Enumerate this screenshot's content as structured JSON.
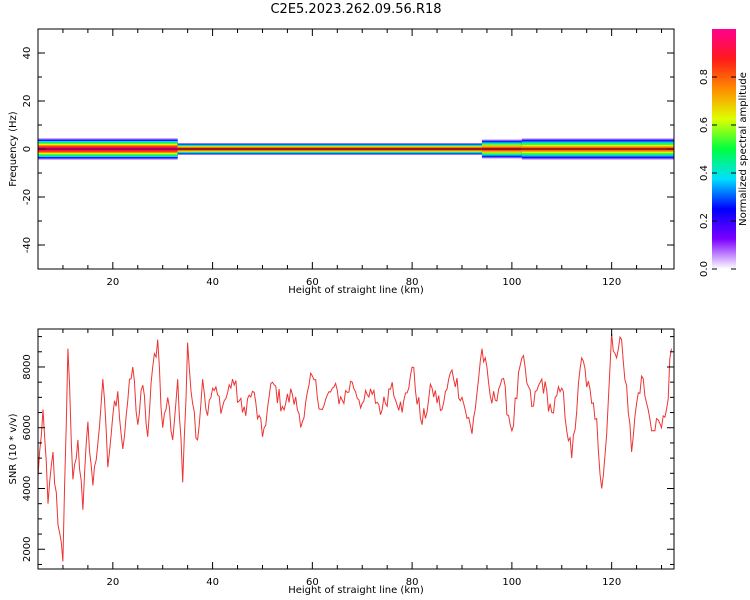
{
  "title": "C2E5.2023.262.09.56.R18",
  "chart_data": [
    {
      "type": "heatmap",
      "xlabel": "Height of straight line (km)",
      "ylabel": "Frequency (Hz)",
      "xlim": [
        5,
        132.5
      ],
      "ylim": [
        -50,
        50
      ],
      "xticks": [
        20,
        40,
        60,
        80,
        100,
        120
      ],
      "yticks": [
        -40,
        -20,
        0,
        20,
        40
      ],
      "colorbar": {
        "label": "Normalized spectral amplitude",
        "range": [
          0,
          1
        ],
        "ticks": [
          "0.0",
          "0.2",
          "0.4",
          "0.6",
          "0.8"
        ],
        "colormap": "gist_ncar",
        "stops": [
          "#ffffff",
          "#7b00ff",
          "#0000ff",
          "#00e0ff",
          "#00ff40",
          "#dfff00",
          "#ff8c00",
          "#ff1a1a",
          "#ff0090"
        ]
      },
      "band": {
        "center_hz": 0,
        "segments": [
          {
            "x": [
              5,
              33
            ],
            "half_width_hz": 4.5,
            "peak": 1.0
          },
          {
            "x": [
              33,
              94
            ],
            "half_width_hz": 2.5,
            "peak": 0.95
          },
          {
            "x": [
              94,
              102
            ],
            "half_width_hz": 4.0,
            "peak": 0.9
          },
          {
            "x": [
              102,
              132.5
            ],
            "half_width_hz": 4.5,
            "peak": 0.85
          }
        ]
      }
    },
    {
      "type": "line",
      "xlabel": "Height of straight line (km)",
      "ylabel": "SNR (10 * v/v)",
      "xlim": [
        5,
        132.5
      ],
      "ylim": [
        1350,
        9250
      ],
      "xticks": [
        20,
        40,
        60,
        80,
        100,
        120
      ],
      "yticks": [
        2000,
        4000,
        6000,
        8000
      ],
      "series": [
        {
          "color": "#ee3333",
          "x": [
            5,
            6,
            7,
            8,
            9,
            10,
            11,
            12,
            13,
            14,
            15,
            16,
            17,
            18,
            19,
            20,
            21,
            22,
            23,
            24,
            25,
            26,
            27,
            28,
            29,
            30,
            31,
            32,
            33,
            34,
            35,
            36,
            37,
            38,
            39,
            40,
            42,
            44,
            46,
            48,
            50,
            52,
            54,
            56,
            58,
            60,
            62,
            64,
            66,
            68,
            70,
            72,
            74,
            76,
            78,
            80,
            82,
            84,
            86,
            88,
            90,
            92,
            94,
            96,
            98,
            100,
            102,
            104,
            106,
            108,
            110,
            112,
            114,
            116,
            117,
            118,
            119,
            120,
            121,
            122,
            123,
            124,
            125,
            126,
            127,
            128,
            129,
            130,
            131,
            132
          ],
          "y": [
            4400,
            6600,
            3500,
            5200,
            2800,
            1600,
            8600,
            4300,
            5600,
            3300,
            6200,
            4100,
            5500,
            7600,
            4700,
            6400,
            7200,
            5300,
            6900,
            8000,
            6100,
            7400,
            5700,
            8000,
            8900,
            6000,
            7000,
            5600,
            7600,
            4200,
            8800,
            6800,
            5600,
            7600,
            6400,
            7300,
            6700,
            7600,
            6500,
            7200,
            5700,
            7500,
            6700,
            7100,
            6200,
            7700,
            6600,
            7300,
            6900,
            7500,
            6800,
            7100,
            6600,
            7500,
            6500,
            8000,
            6100,
            7300,
            6600,
            7900,
            7000,
            5800,
            8600,
            6800,
            7600,
            5900,
            8300,
            6700,
            7600,
            6500,
            7300,
            5000,
            8300,
            6800,
            6300,
            4000,
            5800,
            9100,
            8300,
            8900,
            7400,
            5200,
            6800,
            7700,
            6800,
            5900,
            6300,
            6000,
            6600,
            8600
          ]
        }
      ]
    }
  ]
}
